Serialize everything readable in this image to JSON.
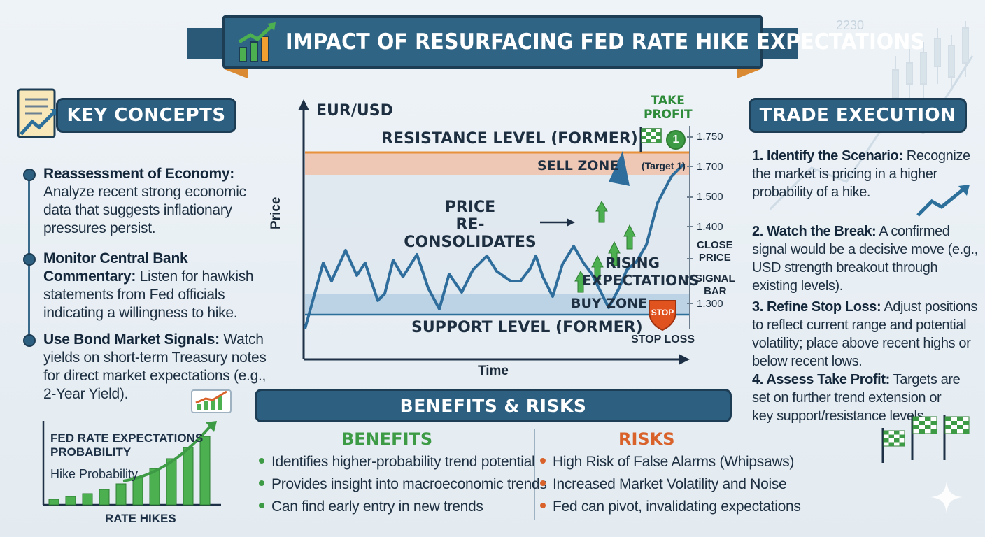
{
  "title": "IMPACT OF RESURFACING FED RATE HIKE EXPECTATIONS",
  "background_number": "2230",
  "key_concepts": {
    "heading": "KEY CONCEPTS",
    "items": [
      {
        "label": "Reassessment of Economy:",
        "text": "Analyze recent strong economic data that suggests inflationary pressures persist."
      },
      {
        "label": "Monitor Central Bank Commentary:",
        "text": "Listen for hawkish statements from Fed officials indicating a willingness to hike."
      },
      {
        "label": "Use Bond Market Signals:",
        "text": "Watch yields on short-term Treasury notes for direct market expectations (e.g., 2-Year Yield)."
      }
    ]
  },
  "fed_chart": {
    "title_line1": "FED RATE EXPECTATIONS",
    "title_line2": "PROBABILITY",
    "series_label": "Hike Probability",
    "xlabel": "RATE HIKES"
  },
  "main_chart": {
    "pair": "EUR/USD",
    "ylabel": "Price",
    "xlabel": "Time",
    "resistance_label": "RESISTANCE LEVEL (FORMER)",
    "support_label": "SUPPORT LEVEL (FORMER)",
    "sell_zone": "SELL ZONE",
    "buy_zone": "BUY ZONE",
    "consolidation_line1": "PRICE",
    "consolidation_line2": "RE-CONSOLIDATES",
    "rising_line1": "RISING",
    "rising_line2": "EXPECTATIONS",
    "take_profit_line1": "TAKE",
    "take_profit_line2": "PROFIT",
    "target_badge": "1",
    "target_label": "(Target 1)",
    "close_price_line1": "CLOSE",
    "close_price_line2": "PRICE",
    "signal_bar_line1": "SIGNAL",
    "signal_bar_line2": "BAR",
    "stop_sign": "STOP",
    "stop_loss": "STOP LOSS",
    "ticks": [
      "1.750",
      "1.700",
      "1.500",
      "1.400",
      "1.300"
    ]
  },
  "benefits_risks": {
    "heading": "BENEFITS & RISKS",
    "benefits_title": "BENEFITS",
    "benefits": [
      "Identifies higher-probability trend potential",
      "Provides insight into macroeconomic trends",
      "Can find early entry in new trends"
    ],
    "risks_title": "RISKS",
    "risks": [
      "High Risk of False Alarms (Whipsaws)",
      "Increased Market Volatility and Noise",
      "Fed can pivot, invalidating expectations"
    ]
  },
  "trade_execution": {
    "heading": "TRADE EXECUTION",
    "steps": [
      {
        "label": "1. Identify the Scenario:",
        "text": "Recognize the market is pricing in a higher probability of a hike."
      },
      {
        "label": "2. Watch the Break:",
        "text": "A confirmed signal would be a decisive move (e.g., USD strength breakout through existing levels)."
      },
      {
        "label": "3. Refine Stop Loss:",
        "text": "Adjust positions to reflect current range and potential volatility; place above recent highs or below recent lows."
      },
      {
        "label": "4. Assess Take Profit:",
        "text": "Targets are set on further trend extension or key support/resistance levels."
      }
    ]
  },
  "colors": {
    "navy": "#2c5f80",
    "green": "#3d9a45",
    "orange": "#d9622b",
    "sell_zone": "#efc7b5",
    "buy_zone": "#bcd3e6"
  }
}
